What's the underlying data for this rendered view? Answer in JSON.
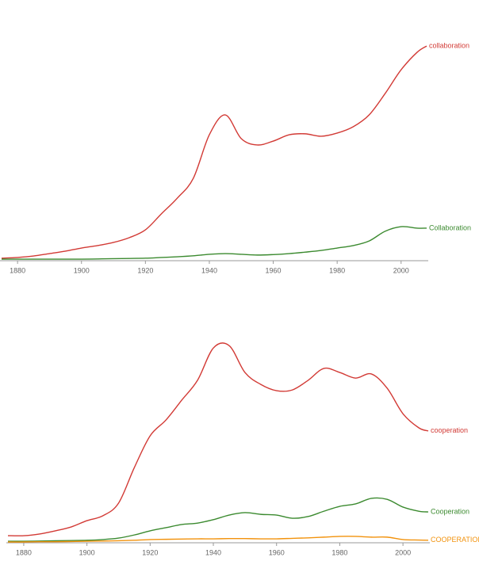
{
  "chart_data": [
    {
      "type": "line",
      "x": [
        1875,
        1880,
        1885,
        1890,
        1895,
        1900,
        1905,
        1910,
        1915,
        1920,
        1925,
        1930,
        1935,
        1940,
        1945,
        1950,
        1955,
        1960,
        1965,
        1970,
        1975,
        1980,
        1985,
        1990,
        1995,
        2000,
        2005,
        2008
      ],
      "xlim": [
        1875,
        2008
      ],
      "xticks": [
        1880,
        1900,
        1920,
        1940,
        1960,
        1980,
        2000
      ],
      "ylim": [
        0,
        100
      ],
      "series": [
        {
          "name": "collaboration",
          "color": "#d23a35",
          "values": [
            0.7,
            1,
            1.6,
            2.6,
            3.6,
            4.9,
            5.9,
            7.2,
            9.2,
            12.4,
            19,
            25.5,
            33.7,
            51.6,
            59.8,
            50,
            47.4,
            49,
            51.6,
            52,
            51,
            52.3,
            54.9,
            59.8,
            68.6,
            78.4,
            85.6,
            88.2
          ]
        },
        {
          "name": "Collaboration",
          "color": "#3b8a2f",
          "values": [
            0.3,
            0.3,
            0.3,
            0.3,
            0.3,
            0.3,
            0.4,
            0.5,
            0.6,
            0.7,
            1,
            1.3,
            1.7,
            2.3,
            2.6,
            2.3,
            2,
            2.2,
            2.6,
            3.2,
            3.9,
            4.9,
            5.9,
            7.8,
            11.8,
            13.7,
            13.1,
            13.1
          ]
        }
      ]
    },
    {
      "type": "line",
      "x": [
        1875,
        1880,
        1885,
        1890,
        1895,
        1900,
        1905,
        1910,
        1915,
        1920,
        1925,
        1930,
        1935,
        1940,
        1945,
        1950,
        1955,
        1960,
        1965,
        1970,
        1975,
        1980,
        1985,
        1990,
        1995,
        2000,
        2005,
        2008
      ],
      "xlim": [
        1875,
        2008
      ],
      "xticks": [
        1880,
        1900,
        1920,
        1940,
        1960,
        1980,
        2000
      ],
      "ylim": [
        0,
        100
      ],
      "series": [
        {
          "name": "cooperation",
          "color": "#d23a35",
          "values": [
            2.6,
            2.6,
            3.3,
            4.6,
            6.2,
            8.8,
            10.8,
            16,
            30.7,
            43.8,
            50.3,
            58.5,
            66.7,
            80,
            81,
            69.9,
            65,
            62.4,
            62.7,
            66.7,
            71.6,
            69.9,
            67.6,
            69.3,
            63.4,
            52.9,
            47.1,
            45.8
          ]
        },
        {
          "name": "Cooperation",
          "color": "#3b8a2f",
          "values": [
            0.3,
            0.3,
            0.4,
            0.5,
            0.6,
            0.7,
            1,
            1.6,
            2.9,
            4.6,
            5.9,
            7.2,
            7.8,
            9.2,
            11.1,
            12.1,
            11.4,
            11.1,
            9.8,
            10.5,
            12.7,
            14.7,
            15.7,
            18,
            17.6,
            14.4,
            12.7,
            12.4
          ]
        },
        {
          "name": "COOPERATION",
          "color": "#f2920c",
          "values": [
            0,
            0,
            0.1,
            0.1,
            0.2,
            0.3,
            0.4,
            0.5,
            0.7,
            1,
            1.1,
            1.2,
            1.3,
            1.3,
            1.4,
            1.4,
            1.3,
            1.3,
            1.5,
            1.7,
            2,
            2.3,
            2.3,
            2,
            2,
            1,
            0.8,
            0.7
          ]
        }
      ]
    }
  ]
}
